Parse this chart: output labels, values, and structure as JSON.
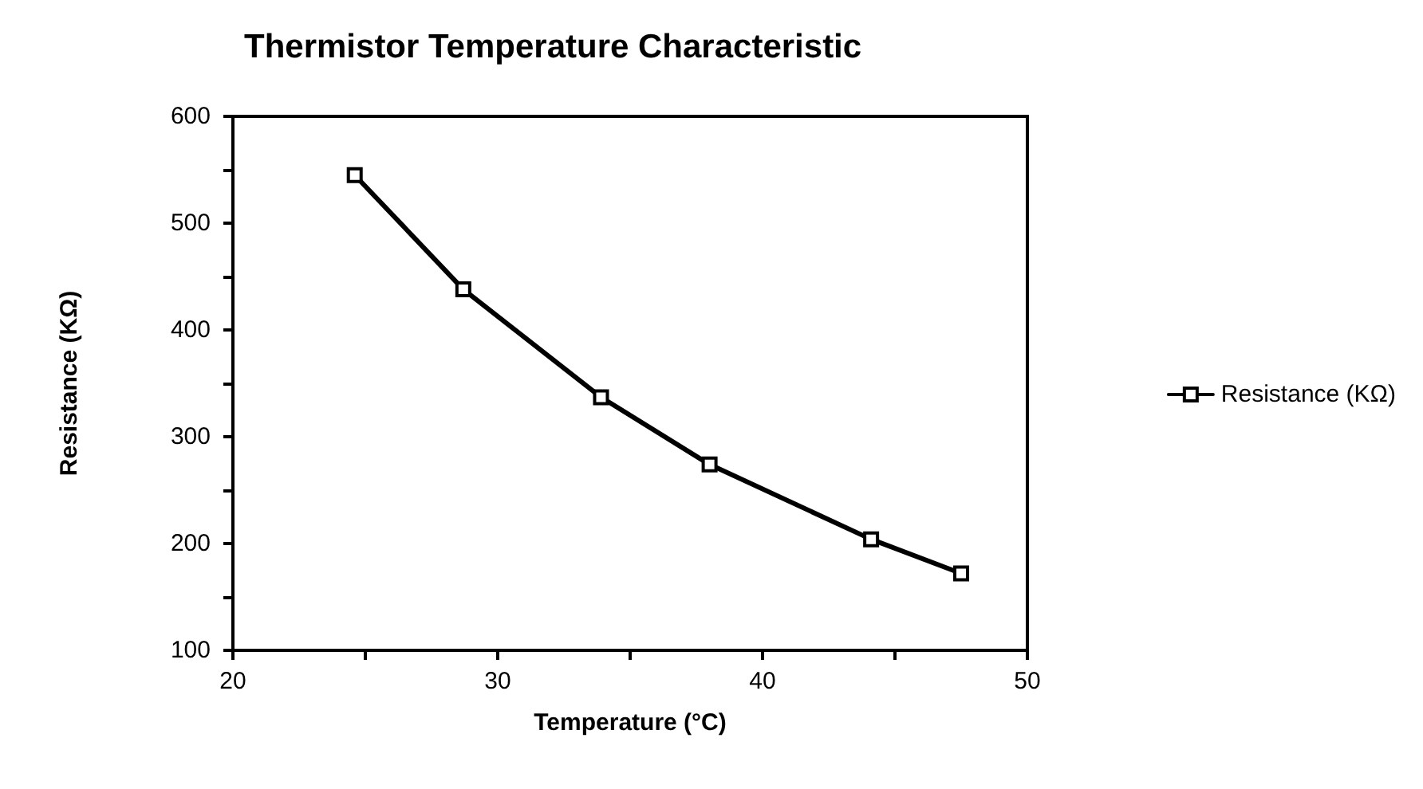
{
  "chart_data": {
    "type": "line",
    "title": "Thermistor Temperature Characteristic",
    "xlabel": "Temperature (°C)",
    "ylabel": "Resistance (KΩ)",
    "x": [
      24.6,
      28.7,
      33.9,
      38.0,
      44.1,
      47.5
    ],
    "series": [
      {
        "name": "Resistance (KΩ)",
        "color": "#000000",
        "values": [
          545,
          438,
          337,
          274,
          204,
          172
        ]
      }
    ],
    "xlim": [
      20,
      50
    ],
    "xticks": [
      20,
      {
        "value": 25,
        "label": null
      },
      30,
      {
        "value": 35,
        "label": null
      },
      40,
      {
        "value": 45,
        "label": null
      },
      50
    ],
    "ylim": [
      100,
      600
    ],
    "yticks": [
      100,
      {
        "value": 150,
        "label": null
      },
      200,
      {
        "value": 250,
        "label": null
      },
      300,
      {
        "value": 350,
        "label": null
      },
      400,
      {
        "value": 450,
        "label": null
      },
      500,
      {
        "value": 550,
        "label": null
      },
      600
    ],
    "grid": false,
    "legend": "right",
    "marker": "square",
    "line_style": "solid"
  }
}
